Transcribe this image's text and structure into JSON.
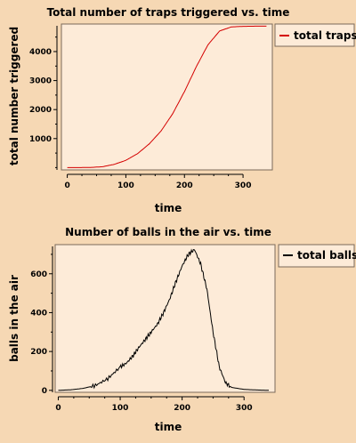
{
  "colors": {
    "page_background": "#f6d8b4",
    "plot_background": "#fdebd8",
    "frame": "#7b6a5a",
    "traps_line": "#d40000",
    "balls_line": "#000000"
  },
  "chart_data": [
    {
      "type": "line",
      "title": "Total number of traps triggered vs. time",
      "xlabel": "time",
      "ylabel": "total number triggered",
      "xlim": [
        -10,
        350
      ],
      "ylim": [
        -80,
        4950
      ],
      "xticks": [
        0,
        100,
        200,
        300
      ],
      "xtick_labels": [
        "0",
        "100",
        "200",
        "300"
      ],
      "yticks": [
        1000,
        2000,
        3000,
        4000
      ],
      "ytick_labels": [
        "1000",
        "2000",
        "3000",
        "4000"
      ],
      "legend_position": "right-outside-top",
      "grid": false,
      "series": [
        {
          "name": "total traps",
          "color": "#d40000",
          "x": [
            0,
            20,
            40,
            60,
            80,
            100,
            120,
            140,
            160,
            180,
            200,
            220,
            240,
            260,
            280,
            300,
            320,
            340
          ],
          "y": [
            0,
            0,
            5,
            30,
            110,
            250,
            480,
            820,
            1260,
            1860,
            2620,
            3470,
            4230,
            4710,
            4850,
            4870,
            4875,
            4875
          ]
        }
      ]
    },
    {
      "type": "line",
      "title": "Number of balls in the air vs. time",
      "xlabel": "time",
      "ylabel": "balls in the air",
      "xlim": [
        -5,
        350
      ],
      "ylim": [
        -10,
        750
      ],
      "xticks": [
        0,
        100,
        200,
        300
      ],
      "xtick_labels": [
        "0",
        "100",
        "200",
        "300"
      ],
      "yticks": [
        0,
        200,
        400,
        600
      ],
      "ytick_labels": [
        "0",
        "200",
        "400",
        "600"
      ],
      "legend_position": "right-outside-top",
      "grid": false,
      "series": [
        {
          "name": "total balls",
          "color": "#000000",
          "x": [
            0,
            20,
            40,
            60,
            80,
            100,
            110,
            120,
            130,
            140,
            150,
            160,
            170,
            180,
            190,
            200,
            210,
            220,
            230,
            240,
            250,
            260,
            270,
            280,
            300,
            320,
            340
          ],
          "y": [
            0,
            3,
            10,
            25,
            60,
            120,
            140,
            175,
            220,
            260,
            300,
            340,
            400,
            470,
            560,
            640,
            700,
            725,
            650,
            520,
            300,
            120,
            40,
            15,
            5,
            2,
            0
          ]
        }
      ]
    }
  ]
}
